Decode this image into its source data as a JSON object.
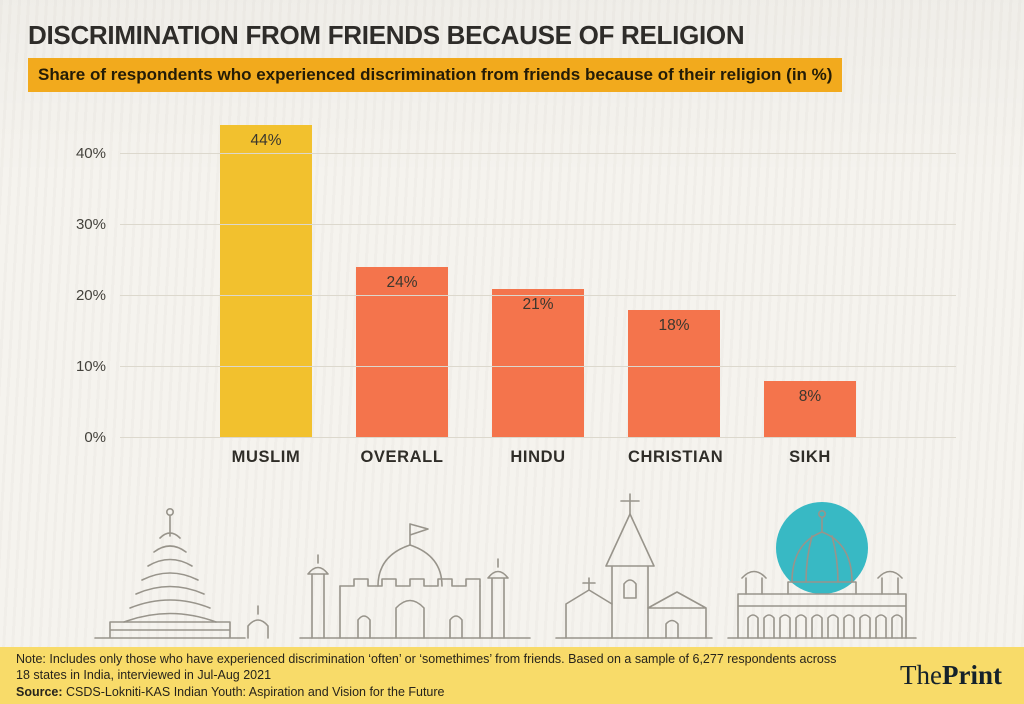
{
  "page": {
    "title": "DISCRIMINATION FROM FRIENDS BECAUSE OF RELIGION",
    "subtitle": "Share of respondents who experienced discrimination from friends because of their religion (in %)"
  },
  "chart_data": {
    "type": "bar",
    "title": "Share of respondents who experienced discrimination from friends because of their religion (in %)",
    "categories": [
      "MUSLIM",
      "OVERALL",
      "HINDU",
      "CHRISTIAN",
      "SIKH"
    ],
    "values": [
      44,
      24,
      21,
      18,
      8
    ],
    "value_labels": [
      "44%",
      "24%",
      "21%",
      "18%",
      "8%"
    ],
    "bar_colors": [
      "#F2C12E",
      "#F4744C",
      "#F4744C",
      "#F4744C",
      "#F4744C"
    ],
    "ticks": [
      "0%",
      "10%",
      "20%",
      "30%",
      "40%"
    ],
    "tick_values": [
      0,
      10,
      20,
      30,
      40
    ],
    "ymax": 45,
    "xlabel": "",
    "ylabel": "",
    "grid": true,
    "legend": "none"
  },
  "footer": {
    "note_line1": "Note: Includes only those who have experienced discrimination ‘often’ or ‘somethimes’ from friends. Based on a sample of 6,277 respondents across",
    "note_line2": "18 states in India, interviewed in Jul-Aug 2021",
    "source_label": "Source:",
    "source_text": "CSDS-Lokniti-KAS Indian Youth: Aspiration and Vision for the Future",
    "brand_the": "The",
    "brand_print": "Print"
  },
  "colors": {
    "subtitle_bg": "#F2AA1D",
    "footer_bg": "#F8DB69",
    "accent_yellow": "#F2C12E",
    "accent_orange": "#F4744C",
    "teal": "#38B9C4",
    "line_art": "#98948B"
  }
}
